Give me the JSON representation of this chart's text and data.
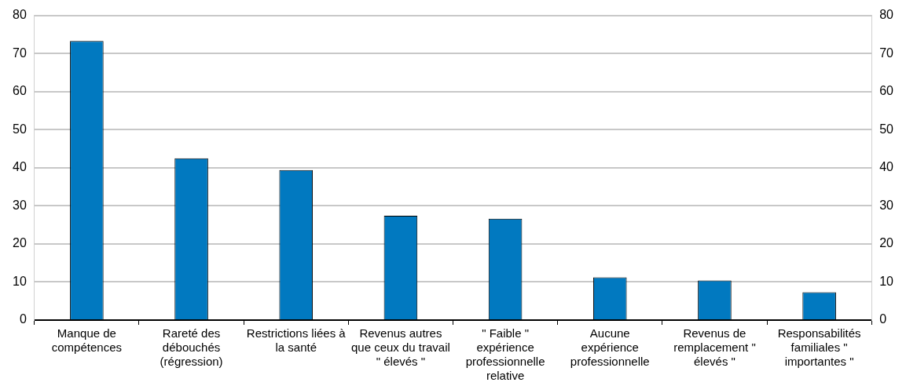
{
  "chart_data": {
    "type": "bar",
    "categories": [
      "Manque de compétences",
      "Rareté des débouchés (régression)",
      "Restrictions liées à la santé",
      "Revenus autres que ceux du travail \" élevés \"",
      "\" Faible \" expérience professionnelle relative",
      "Aucune expérience professionnelle",
      "Revenus de remplacement \" élevés \"",
      "Responsabilités familiales \" importantes \""
    ],
    "values": [
      73.3,
      42.5,
      39.4,
      27.4,
      26.6,
      11.2,
      10.4,
      7.3
    ],
    "color": "#0179c0",
    "ylim": [
      0,
      80
    ],
    "yticks": [
      0,
      10,
      20,
      30,
      40,
      50,
      60,
      70,
      80
    ],
    "y2lim": [
      0,
      80
    ],
    "y2ticks": [
      0,
      10,
      20,
      30,
      40,
      50,
      60,
      70,
      80
    ],
    "grid": "y",
    "legend": false
  }
}
